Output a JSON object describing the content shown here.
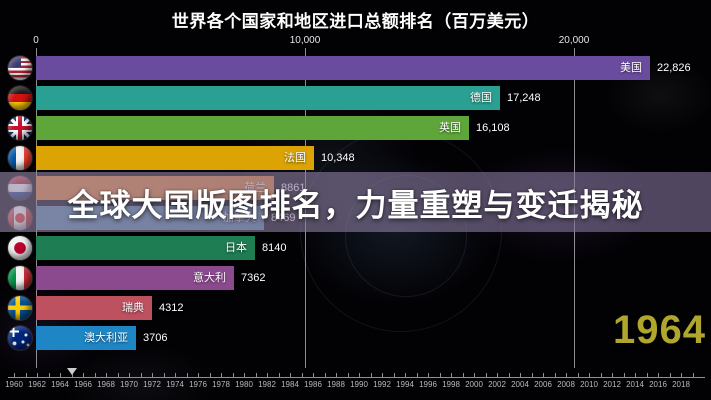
{
  "title": "世界各个国家和地区进口总额排名（百万美元）",
  "overlay_banner": {
    "text": "全球大国版图排名，力量重塑与变迁揭秘"
  },
  "year_indicator": "1964",
  "colors": {
    "year_indicator": "#b1a62c",
    "banner_bg_left": "rgba(152,138,170,0.60)",
    "banner_bg_right": "rgba(126,110,150,0.62)",
    "gridline": "rgba(255,255,255,0.55)"
  },
  "chart_data": {
    "type": "bar",
    "orientation": "horizontal",
    "title": "世界各个国家和地区进口总额排名（百万美元）",
    "unit": "百万美元",
    "year": 1964,
    "xlim": [
      0,
      25000
    ],
    "grid": true,
    "x_ticks": [
      {
        "value": 0,
        "label": "0"
      },
      {
        "value": 10000,
        "label": "10,000"
      },
      {
        "value": 20000,
        "label": "20,000"
      }
    ],
    "categories": [
      "美国",
      "德国",
      "英国",
      "法国",
      "荷兰",
      "加拿大",
      "日本",
      "意大利",
      "瑞典",
      "澳大利亚"
    ],
    "values": [
      22826,
      17248,
      16108,
      10348,
      8861,
      8469,
      8140,
      7362,
      4312,
      3706
    ],
    "bars": [
      {
        "name": "美国",
        "value": 22826,
        "value_label": "22,826",
        "color": "#6a4c9e",
        "flag": "us"
      },
      {
        "name": "德国",
        "value": 17248,
        "value_label": "17,248",
        "color": "#2aa092",
        "flag": "de"
      },
      {
        "name": "英国",
        "value": 16108,
        "value_label": "16,108",
        "color": "#5fa63a",
        "flag": "uk"
      },
      {
        "name": "法国",
        "value": 10348,
        "value_label": "10,348",
        "color": "#dba303",
        "flag": "fr"
      },
      {
        "name": "荷兰",
        "value": 8861,
        "value_label": "8861",
        "color": "#dd7e2e",
        "flag": "nl"
      },
      {
        "name": "加拿大",
        "value": 8469,
        "value_label": "8469",
        "color": "#4f7f9e",
        "flag": "ca"
      },
      {
        "name": "日本",
        "value": 8140,
        "value_label": "8140",
        "color": "#1e7d52",
        "flag": "jp"
      },
      {
        "name": "意大利",
        "value": 7362,
        "value_label": "7362",
        "color": "#8c4a8e",
        "flag": "it"
      },
      {
        "name": "瑞典",
        "value": 4312,
        "value_label": "4312",
        "color": "#bd5160",
        "flag": "se"
      },
      {
        "name": "澳大利亚",
        "value": 3706,
        "value_label": "3706",
        "color": "#1f86c5",
        "flag": "au"
      }
    ]
  },
  "timeline": {
    "first_year": 1960,
    "last_year": 2019,
    "marker_year": 1965,
    "year_labels": [
      "1960",
      "1962",
      "1964",
      "1966",
      "1968",
      "1970",
      "1972",
      "1974",
      "1976",
      "1978",
      "1980",
      "1982",
      "1984",
      "1986",
      "1988",
      "1990",
      "1992",
      "1994",
      "1996",
      "1998",
      "2000",
      "2002",
      "2004",
      "2006",
      "2008",
      "2010",
      "2012",
      "2014",
      "2016",
      "2018"
    ]
  }
}
